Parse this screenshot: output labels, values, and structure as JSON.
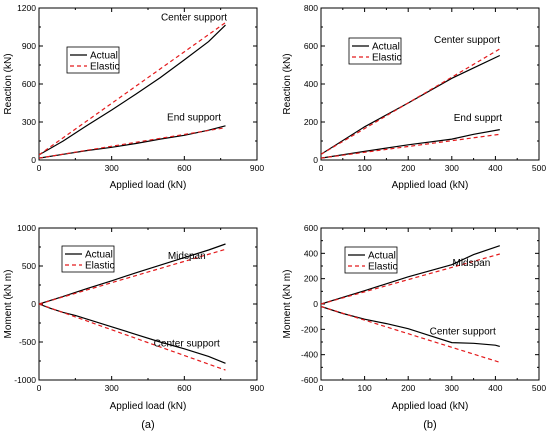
{
  "chart_data": [
    {
      "type": "line",
      "panel": "",
      "title": "",
      "xlabel": "Applied load (kN)",
      "ylabel": "Reaction (kN)",
      "xlim": [
        0,
        900
      ],
      "ylim": [
        0,
        1200
      ],
      "xticks": [
        0,
        300,
        600,
        900
      ],
      "yticks": [
        0,
        300,
        600,
        900,
        1200
      ],
      "legend": {
        "placement": "upper-left",
        "entries": [
          "Actual",
          "Elastic"
        ]
      },
      "annotations": [
        {
          "text": "Center support",
          "x": 640,
          "y": 1100
        },
        {
          "text": "End support",
          "x": 640,
          "y": 310
        }
      ],
      "series": [
        {
          "name": "Actual",
          "group": "Center support",
          "style": "solid",
          "color": "#000000",
          "x": [
            0,
            100,
            200,
            300,
            400,
            500,
            600,
            700,
            770
          ],
          "y": [
            40,
            150,
            275,
            395,
            520,
            650,
            790,
            935,
            1065
          ]
        },
        {
          "name": "Elastic",
          "group": "Center support",
          "style": "dashed",
          "color": "#e41a1c",
          "x": [
            0,
            770
          ],
          "y": [
            40,
            1085
          ]
        },
        {
          "name": "Actual",
          "group": "End support",
          "style": "solid",
          "color": "#000000",
          "x": [
            0,
            100,
            200,
            300,
            400,
            500,
            600,
            700,
            770
          ],
          "y": [
            15,
            45,
            75,
            100,
            130,
            165,
            195,
            235,
            270
          ]
        },
        {
          "name": "Elastic",
          "group": "End support",
          "style": "dashed",
          "color": "#e41a1c",
          "x": [
            0,
            770
          ],
          "y": [
            15,
            255
          ]
        }
      ]
    },
    {
      "type": "line",
      "panel": "",
      "title": "",
      "xlabel": "Applied load (kN)",
      "ylabel": "Reaction (kN)",
      "xlim": [
        0,
        500
      ],
      "ylim": [
        0,
        800
      ],
      "xticks": [
        0,
        100,
        200,
        300,
        400,
        500
      ],
      "yticks": [
        0,
        200,
        400,
        600,
        800
      ],
      "legend": {
        "placement": "upper-left",
        "entries": [
          "Actual",
          "Elastic"
        ]
      },
      "annotations": [
        {
          "text": "Center support",
          "x": 335,
          "y": 615
        },
        {
          "text": "End supprt",
          "x": 360,
          "y": 205
        }
      ],
      "series": [
        {
          "name": "Actual",
          "group": "Center support",
          "style": "solid",
          "color": "#000000",
          "x": [
            0,
            100,
            200,
            300,
            350,
            410
          ],
          "y": [
            30,
            175,
            300,
            430,
            485,
            550
          ]
        },
        {
          "name": "Elastic",
          "group": "Center support",
          "style": "dashed",
          "color": "#e41a1c",
          "x": [
            0,
            410
          ],
          "y": [
            30,
            585
          ]
        },
        {
          "name": "Actual",
          "group": "End support",
          "style": "solid",
          "color": "#000000",
          "x": [
            0,
            100,
            200,
            300,
            350,
            410
          ],
          "y": [
            10,
            45,
            80,
            110,
            135,
            160
          ]
        },
        {
          "name": "Elastic",
          "group": "End support",
          "style": "dashed",
          "color": "#e41a1c",
          "x": [
            0,
            410
          ],
          "y": [
            10,
            135
          ]
        }
      ]
    },
    {
      "type": "line",
      "panel": "(a)",
      "title": "",
      "xlabel": "Applied load (kN)",
      "ylabel": "Moment (kN m)",
      "xlim": [
        0,
        900
      ],
      "ylim": [
        -1000,
        1000
      ],
      "xticks": [
        0,
        300,
        600,
        900
      ],
      "yticks": [
        -1000,
        -500,
        0,
        500,
        1000
      ],
      "legend": {
        "placement": "upper-left",
        "entries": [
          "Actual",
          "Elastic"
        ]
      },
      "annotations": [
        {
          "text": "Midspan",
          "x": 610,
          "y": 590
        },
        {
          "text": "Center support",
          "x": 610,
          "y": -560
        }
      ],
      "series": [
        {
          "name": "Actual",
          "group": "Midspan",
          "style": "solid",
          "color": "#000000",
          "x": [
            0,
            100,
            200,
            300,
            400,
            500,
            600,
            700,
            770
          ],
          "y": [
            0,
            100,
            205,
            305,
            410,
            510,
            610,
            710,
            790
          ]
        },
        {
          "name": "Elastic",
          "group": "Midspan",
          "style": "dashed",
          "color": "#e41a1c",
          "x": [
            0,
            770
          ],
          "y": [
            0,
            720
          ]
        },
        {
          "name": "Actual",
          "group": "Center support",
          "style": "solid",
          "color": "#000000",
          "x": [
            0,
            50,
            100,
            150,
            300,
            400,
            500,
            600,
            700,
            770
          ],
          "y": [
            0,
            -60,
            -110,
            -150,
            -300,
            -400,
            -500,
            -590,
            -690,
            -780
          ]
        },
        {
          "name": "Elastic",
          "group": "Center support",
          "style": "dashed",
          "color": "#e41a1c",
          "x": [
            0,
            770
          ],
          "y": [
            0,
            -870
          ]
        }
      ]
    },
    {
      "type": "line",
      "panel": "(b)",
      "title": "",
      "xlabel": "Applied load (kN)",
      "ylabel": "Moment (kN m)",
      "xlim": [
        0,
        500
      ],
      "ylim": [
        -600,
        600
      ],
      "xticks": [
        0,
        100,
        200,
        300,
        400,
        500
      ],
      "yticks": [
        -600,
        -400,
        -200,
        0,
        200,
        400,
        600
      ],
      "legend": {
        "placement": "upper-left",
        "entries": [
          "Actual",
          "Elastic"
        ]
      },
      "annotations": [
        {
          "text": "Midspan",
          "x": 345,
          "y": 300
        },
        {
          "text": "Center support",
          "x": 325,
          "y": -240
        }
      ],
      "series": [
        {
          "name": "Actual",
          "group": "Midspan",
          "style": "solid",
          "color": "#000000",
          "x": [
            0,
            100,
            200,
            300,
            350,
            410
          ],
          "y": [
            0,
            105,
            215,
            310,
            390,
            460
          ]
        },
        {
          "name": "Elastic",
          "group": "Midspan",
          "style": "dashed",
          "color": "#e41a1c",
          "x": [
            0,
            410
          ],
          "y": [
            0,
            395
          ]
        },
        {
          "name": "Actual",
          "group": "Center support",
          "style": "solid",
          "color": "#000000",
          "x": [
            0,
            50,
            100,
            150,
            200,
            250,
            300,
            350,
            400,
            410
          ],
          "y": [
            -20,
            -75,
            -120,
            -155,
            -195,
            -250,
            -305,
            -310,
            -325,
            -335
          ]
        },
        {
          "name": "Elastic",
          "group": "Center support",
          "style": "dashed",
          "color": "#e41a1c",
          "x": [
            0,
            410
          ],
          "y": [
            -20,
            -460
          ]
        }
      ]
    }
  ]
}
